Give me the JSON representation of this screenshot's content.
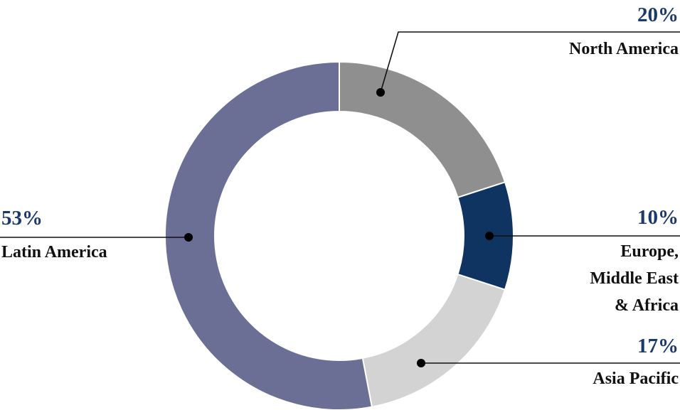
{
  "chart_data": {
    "type": "pie",
    "donut": true,
    "start": "top",
    "direction": "clockwise",
    "legend": "none",
    "percent_color": "#1b3a6b",
    "slices": [
      {
        "label": "North America",
        "label_lines": [
          "North America"
        ],
        "value": 20,
        "percent_label": "20%",
        "color": "#8f8f8f"
      },
      {
        "label": "Europe, Middle East & Africa",
        "label_lines": [
          "Europe,",
          "Middle East",
          "& Africa"
        ],
        "value": 10,
        "percent_label": "10%",
        "color": "#0f3462"
      },
      {
        "label": "Asia Pacific",
        "label_lines": [
          "Asia Pacific"
        ],
        "value": 17,
        "percent_label": "17%",
        "color": "#d3d3d3"
      },
      {
        "label": "Latin America",
        "label_lines": [
          "Latin America"
        ],
        "value": 53,
        "percent_label": "53%",
        "color": "#6b6e95"
      }
    ]
  }
}
